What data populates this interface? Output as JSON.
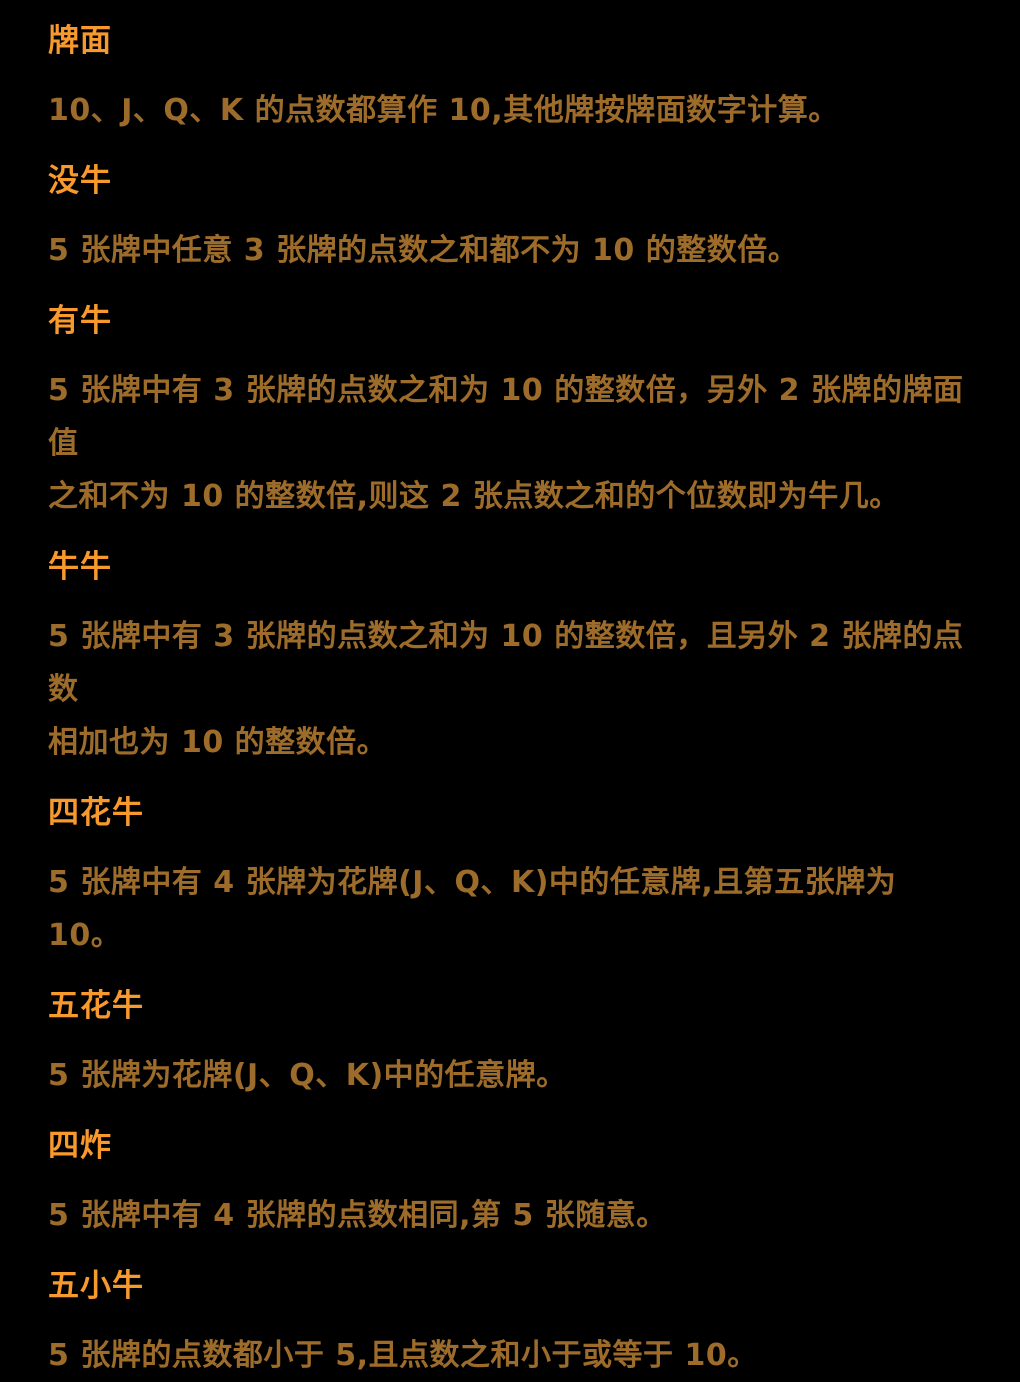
{
  "page": {
    "background_color": "#000000",
    "heading_color": "#F8992E",
    "body_color": "#9D6C2B"
  },
  "sections": [
    {
      "heading": "牌面",
      "body": "10、J、Q、K 的点数都算作 10,其他牌按牌面数字计算。"
    },
    {
      "heading": "没牛",
      "body": "5 张牌中任意 3 张牌的点数之和都不为 10 的整数倍。"
    },
    {
      "heading": "有牛",
      "body": "5 张牌中有 3 张牌的点数之和为 10 的整数倍，另外 2 张牌的牌面值\n之和不为 10 的整数倍,则这 2 张点数之和的个位数即为牛几。"
    },
    {
      "heading": "牛牛",
      "body": "5 张牌中有 3 张牌的点数之和为 10 的整数倍，且另外 2 张牌的点数\n相加也为 10 的整数倍。"
    },
    {
      "heading": "四花牛",
      "body": "5 张牌中有 4 张牌为花牌(J、Q、K)中的任意牌,且第五张牌为 10。"
    },
    {
      "heading": "五花牛",
      "body": "5 张牌为花牌(J、Q、K)中的任意牌。"
    },
    {
      "heading": "四炸",
      "body": "5 张牌中有 4 张牌的点数相同,第 5 张随意。"
    },
    {
      "heading": "五小牛",
      "body": "5 张牌的点数都小于 5,且点数之和小于或等于 10。"
    }
  ]
}
